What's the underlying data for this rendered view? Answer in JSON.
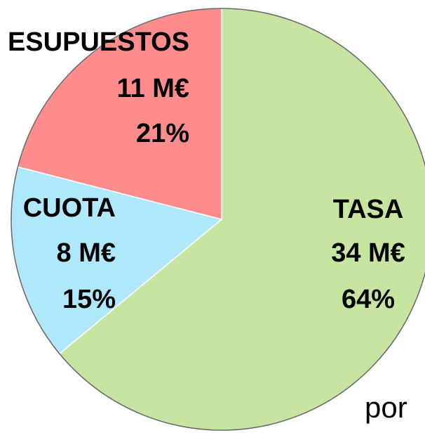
{
  "chart_data": {
    "type": "pie",
    "categories": [
      "TASA",
      "CUOTA",
      "ESUPUESTOS"
    ],
    "values": [
      64,
      15,
      21
    ],
    "value_labels": [
      "64%",
      "15%",
      "21%"
    ],
    "amount_labels": [
      "34 M€",
      "8 M€",
      "11 M€"
    ],
    "colors": [
      "#c6e5a0",
      "#b0e8fb",
      "#ff8c8c"
    ],
    "annotation": "por"
  }
}
